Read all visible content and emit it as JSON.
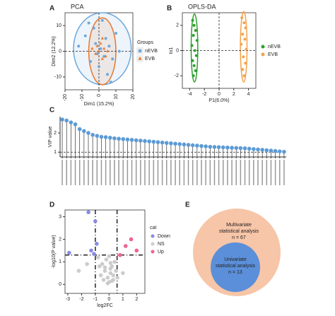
{
  "panel_labels": [
    "A",
    "B",
    "C",
    "D",
    "E"
  ],
  "chart_data": [
    {
      "type": "scatter",
      "title": "PCA",
      "xlabel": "Dim1 (15.2%)",
      "ylabel": "Dim2 (12.2%)",
      "legend_title": "Groups",
      "xlim": [
        -20,
        20
      ],
      "ylim": [
        -15,
        15
      ],
      "xticks": [
        -20,
        -10,
        0,
        10,
        20
      ],
      "yticks": [
        -10,
        0,
        10
      ],
      "ref_x": [
        0
      ],
      "ref_y": [
        0
      ],
      "series": [
        {
          "name": "nEVB",
          "color": "#6fa8dc",
          "marker": "circle",
          "x": [
            -12,
            -8,
            -5,
            -3,
            -2,
            0,
            1,
            2,
            3,
            4,
            5,
            6,
            8,
            10,
            -6,
            -1,
            7,
            12
          ],
          "values": [
            2,
            6,
            -4,
            9,
            3,
            -6,
            1,
            12,
            -2,
            5,
            -9,
            2,
            -3,
            7,
            11,
            -1,
            -12,
            0
          ]
        },
        {
          "name": "EVB",
          "color": "#e8762c",
          "marker": "triangle",
          "x": [
            -4,
            -2,
            0,
            1,
            2,
            3,
            4,
            -1,
            5,
            2
          ],
          "values": [
            1,
            -1,
            0,
            3,
            -3,
            1,
            -2,
            2,
            0,
            5
          ]
        }
      ]
    },
    {
      "type": "scatter",
      "title": "OPLS-DA",
      "xlabel": "P1(6.0%)",
      "ylabel": "to1",
      "xlim": [
        -5,
        5
      ],
      "ylim": [
        -3,
        3
      ],
      "xticks": [
        -4,
        -2,
        0,
        2,
        4
      ],
      "yticks": [
        -2,
        0,
        2
      ],
      "ref_x": [
        0
      ],
      "ref_y": [
        0
      ],
      "series": [
        {
          "name": "nEVB",
          "color": "#2ca02c",
          "marker": "circle",
          "x": [
            -3.6,
            -3.4,
            -3.2,
            -3.5,
            -3.0,
            -3.7,
            -3.3,
            -3.1,
            -3.6,
            -3.4,
            -3.2,
            -3.5
          ],
          "values": [
            2.4,
            2.0,
            1.6,
            1.2,
            0.8,
            0.4,
            0,
            -0.4,
            -0.8,
            -1.2,
            -1.6,
            -2.0
          ]
        },
        {
          "name": "EVB",
          "color": "#f4a24a",
          "marker": "circle",
          "x": [
            3.1,
            3.4,
            3.6,
            3.2,
            3.5,
            3.0,
            3.7,
            3.3,
            3.6,
            3.2,
            3.4
          ],
          "values": [
            2.6,
            2.2,
            1.8,
            1.3,
            0.9,
            0.5,
            0.1,
            -0.5,
            -1.0,
            -1.5,
            -2.0
          ]
        }
      ]
    },
    {
      "type": "lollipop",
      "ylabel": "VIP value",
      "ylim": [
        0.75,
        2.85
      ],
      "yticks": [
        1,
        2
      ],
      "ref_y": [
        1
      ],
      "color": "#5b9bd5",
      "values": [
        2.7,
        2.65,
        2.55,
        2.45,
        2.2,
        2.1,
        2.0,
        1.9,
        1.85,
        1.8,
        1.78,
        1.75,
        1.72,
        1.7,
        1.68,
        1.66,
        1.64,
        1.62,
        1.6,
        1.58,
        1.56,
        1.54,
        1.52,
        1.5,
        1.48,
        1.46,
        1.44,
        1.42,
        1.4,
        1.38,
        1.36,
        1.34,
        1.32,
        1.3,
        1.28,
        1.27,
        1.26,
        1.25,
        1.24,
        1.23,
        1.22,
        1.21,
        1.2,
        1.18,
        1.16,
        1.14,
        1.12,
        1.1,
        1.08,
        1.06,
        1.04,
        1.02
      ]
    },
    {
      "type": "scatter",
      "xlabel": "log2FC",
      "ylabel": "-log10(P value)",
      "legend_title": "cat",
      "xlim": [
        -3.2,
        2.6
      ],
      "ylim": [
        -0.4,
        3.3
      ],
      "xticks": [
        -3,
        -2,
        -1,
        0,
        1,
        2
      ],
      "yticks": [
        0,
        1,
        2,
        3
      ],
      "ref_x": [
        -1,
        0.58
      ],
      "ref_y": [
        1.3
      ],
      "series": [
        {
          "name": "Down",
          "color": "#8a8ae6",
          "marker": "circle",
          "x": [
            -1.5,
            -1.0,
            -1.3,
            -0.9,
            -2.9,
            -1.1
          ],
          "values": [
            3.2,
            2.8,
            1.5,
            1.8,
            1.4,
            1.35
          ]
        },
        {
          "name": "NS",
          "color": "#cccccc",
          "marker": "circle",
          "x": [
            -0.8,
            -0.5,
            -0.3,
            -0.1,
            0,
            0.1,
            0.2,
            0.3,
            0.4,
            -0.6,
            -0.2,
            0.1,
            0.3,
            -0.4,
            0.5,
            -0.7,
            0.2,
            -0.1,
            0.6,
            1.0,
            -1.6,
            -2.2,
            0,
            0.1,
            -0.3
          ],
          "values": [
            1.2,
            0.9,
            0.6,
            0.3,
            0.1,
            0.5,
            0.8,
            0.2,
            1.0,
            0.4,
            1.1,
            0.7,
            0.4,
            0.2,
            0.6,
            0.8,
            0.15,
            0.05,
            0.3,
            0.5,
            0.9,
            0.6,
            1.25,
            0.95,
            0.75
          ]
        },
        {
          "name": "Up",
          "color": "#f06292",
          "marker": "circle",
          "x": [
            1.6,
            1.2,
            2.0,
            0.8
          ],
          "values": [
            2.0,
            1.7,
            1.5,
            1.3
          ]
        }
      ]
    }
  ],
  "venn": {
    "outer": [
      "Multivariate",
      "statistical analysis",
      "n = 67"
    ],
    "inner": [
      "Univariate",
      "statistical analysis",
      "n = 13"
    ]
  }
}
